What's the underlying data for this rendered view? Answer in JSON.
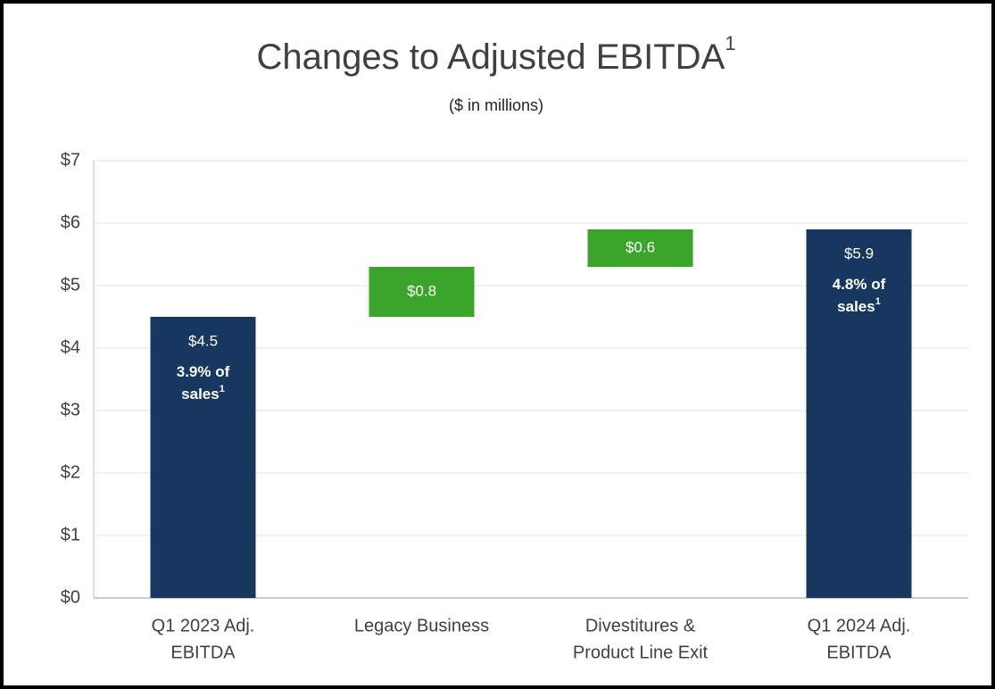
{
  "chart_data": {
    "type": "waterfall",
    "title": "Changes to Adjusted EBITDA",
    "title_superscript": "1",
    "subtitle": "($ in millions)",
    "categories": [
      [
        "Q1 2023 Adj.",
        "EBITDA"
      ],
      [
        "Legacy Business"
      ],
      [
        "Divestitures &",
        "Product Line Exit"
      ],
      [
        "Q1 2024 Adj.",
        "EBITDA"
      ]
    ],
    "values": [
      4.5,
      0.8,
      0.6,
      5.9
    ],
    "value_labels": [
      "$4.5",
      "$0.8",
      "$0.6",
      "$5.9"
    ],
    "bar_notes": [
      {
        "lines": [
          "3.9% of",
          "sales"
        ],
        "superscript": "1"
      },
      null,
      null,
      {
        "lines": [
          "4.8% of",
          "sales"
        ],
        "superscript": "1"
      }
    ],
    "total_color": "#17375e",
    "increase_color": "#3aa52a",
    "ylim": [
      0,
      7
    ],
    "yticks": [
      {
        "value": 0,
        "label": "$0"
      },
      {
        "value": 1,
        "label": "$1"
      },
      {
        "value": 2,
        "label": "$2"
      },
      {
        "value": 3,
        "label": "$3"
      },
      {
        "value": 4,
        "label": "$4"
      },
      {
        "value": 5,
        "label": "$5"
      },
      {
        "value": 6,
        "label": "$6"
      },
      {
        "value": 7,
        "label": "$7"
      }
    ],
    "grid": true
  }
}
